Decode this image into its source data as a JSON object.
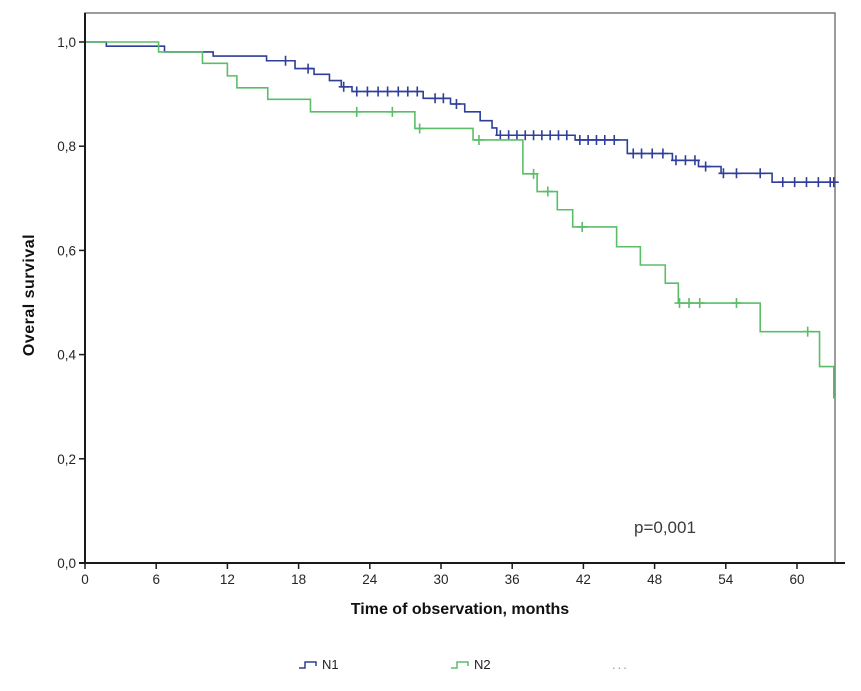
{
  "labels": {
    "ylabel": "Overal survival",
    "xlabel": "Time of observation, months",
    "annotation": "p=0,001"
  },
  "legend": {
    "items": [
      {
        "label": "N1",
        "color": "#2e3e99",
        "glyph": "step-line"
      },
      {
        "label": "N2",
        "color": "#5bbd69",
        "glyph": "step-line"
      },
      {
        "label": "...",
        "color": "#9a9a9a",
        "glyph": "none"
      }
    ]
  },
  "chart_data": {
    "type": "line",
    "subtype": "kaplan-meier-step",
    "title": "",
    "xlabel": "Time of observation, months",
    "ylabel": "Overal survival",
    "annotation": "p=0,001",
    "xlim": [
      0,
      63.2
    ],
    "ylim": [
      0,
      1.056
    ],
    "x_ticks": {
      "values": [
        0,
        6,
        12,
        18,
        24,
        30,
        36,
        42,
        48,
        54,
        60
      ],
      "labels": [
        "0",
        "6",
        "12",
        "18",
        "24",
        "30",
        "36",
        "42",
        "48",
        "54",
        "60"
      ]
    },
    "y_ticks": {
      "values": [
        0,
        0.2,
        0.4,
        0.6,
        0.8,
        1.0
      ],
      "labels": [
        "0,0",
        "0,2",
        "0,4",
        "0,6",
        "0,8",
        "1,0"
      ]
    },
    "grid": false,
    "legend_position": "bottom",
    "frame_color": "#7a7a7a",
    "axis_color": "#1a1a1a",
    "series": [
      {
        "name": "N1",
        "color": "#2e3e99",
        "steps": [
          [
            0,
            1.0
          ],
          [
            1.8,
            0.992
          ],
          [
            6.7,
            0.981
          ],
          [
            10.8,
            0.973
          ],
          [
            15.3,
            0.964
          ],
          [
            17.7,
            0.949
          ],
          [
            19.3,
            0.938
          ],
          [
            20.6,
            0.926
          ],
          [
            21.6,
            0.914
          ],
          [
            22.5,
            0.905
          ],
          [
            28.5,
            0.892
          ],
          [
            30.8,
            0.881
          ],
          [
            32.0,
            0.866
          ],
          [
            33.3,
            0.849
          ],
          [
            34.3,
            0.835
          ],
          [
            34.7,
            0.821
          ],
          [
            41.3,
            0.812
          ],
          [
            45.7,
            0.786
          ],
          [
            49.5,
            0.773
          ],
          [
            51.7,
            0.761
          ],
          [
            53.6,
            0.748
          ],
          [
            57.9,
            0.731
          ]
        ],
        "end_month": 63.2,
        "censor_months": [
          16.9,
          18.8,
          21.8,
          22.9,
          23.8,
          24.7,
          25.5,
          26.4,
          27.2,
          28.0,
          29.5,
          30.2,
          31.3,
          35.0,
          35.7,
          36.4,
          37.1,
          37.8,
          38.5,
          39.2,
          39.9,
          40.6,
          41.7,
          42.4,
          43.1,
          43.8,
          44.6,
          46.2,
          46.9,
          47.8,
          48.7,
          49.8,
          50.6,
          51.4,
          52.3,
          53.8,
          54.9,
          56.9,
          58.8,
          59.8,
          60.8,
          61.8,
          62.8,
          63.1
        ]
      },
      {
        "name": "N2",
        "color": "#5bbd69",
        "steps": [
          [
            0,
            1.0
          ],
          [
            6.2,
            0.981
          ],
          [
            9.9,
            0.959
          ],
          [
            12.0,
            0.935
          ],
          [
            12.8,
            0.912
          ],
          [
            15.4,
            0.89
          ],
          [
            19.0,
            0.866
          ],
          [
            27.8,
            0.834
          ],
          [
            32.7,
            0.812
          ],
          [
            36.9,
            0.747
          ],
          [
            38.1,
            0.713
          ],
          [
            39.8,
            0.678
          ],
          [
            41.1,
            0.645
          ],
          [
            44.8,
            0.607
          ],
          [
            46.8,
            0.572
          ],
          [
            48.9,
            0.537
          ],
          [
            50.0,
            0.499
          ],
          [
            56.9,
            0.444
          ],
          [
            61.9,
            0.377
          ],
          [
            63.1,
            0.317
          ]
        ],
        "end_month": 63.2,
        "censor_months": [
          22.9,
          25.9,
          28.2,
          33.2,
          37.8,
          39.0,
          41.9,
          50.1,
          50.9,
          51.8,
          54.9,
          60.9
        ]
      }
    ]
  }
}
